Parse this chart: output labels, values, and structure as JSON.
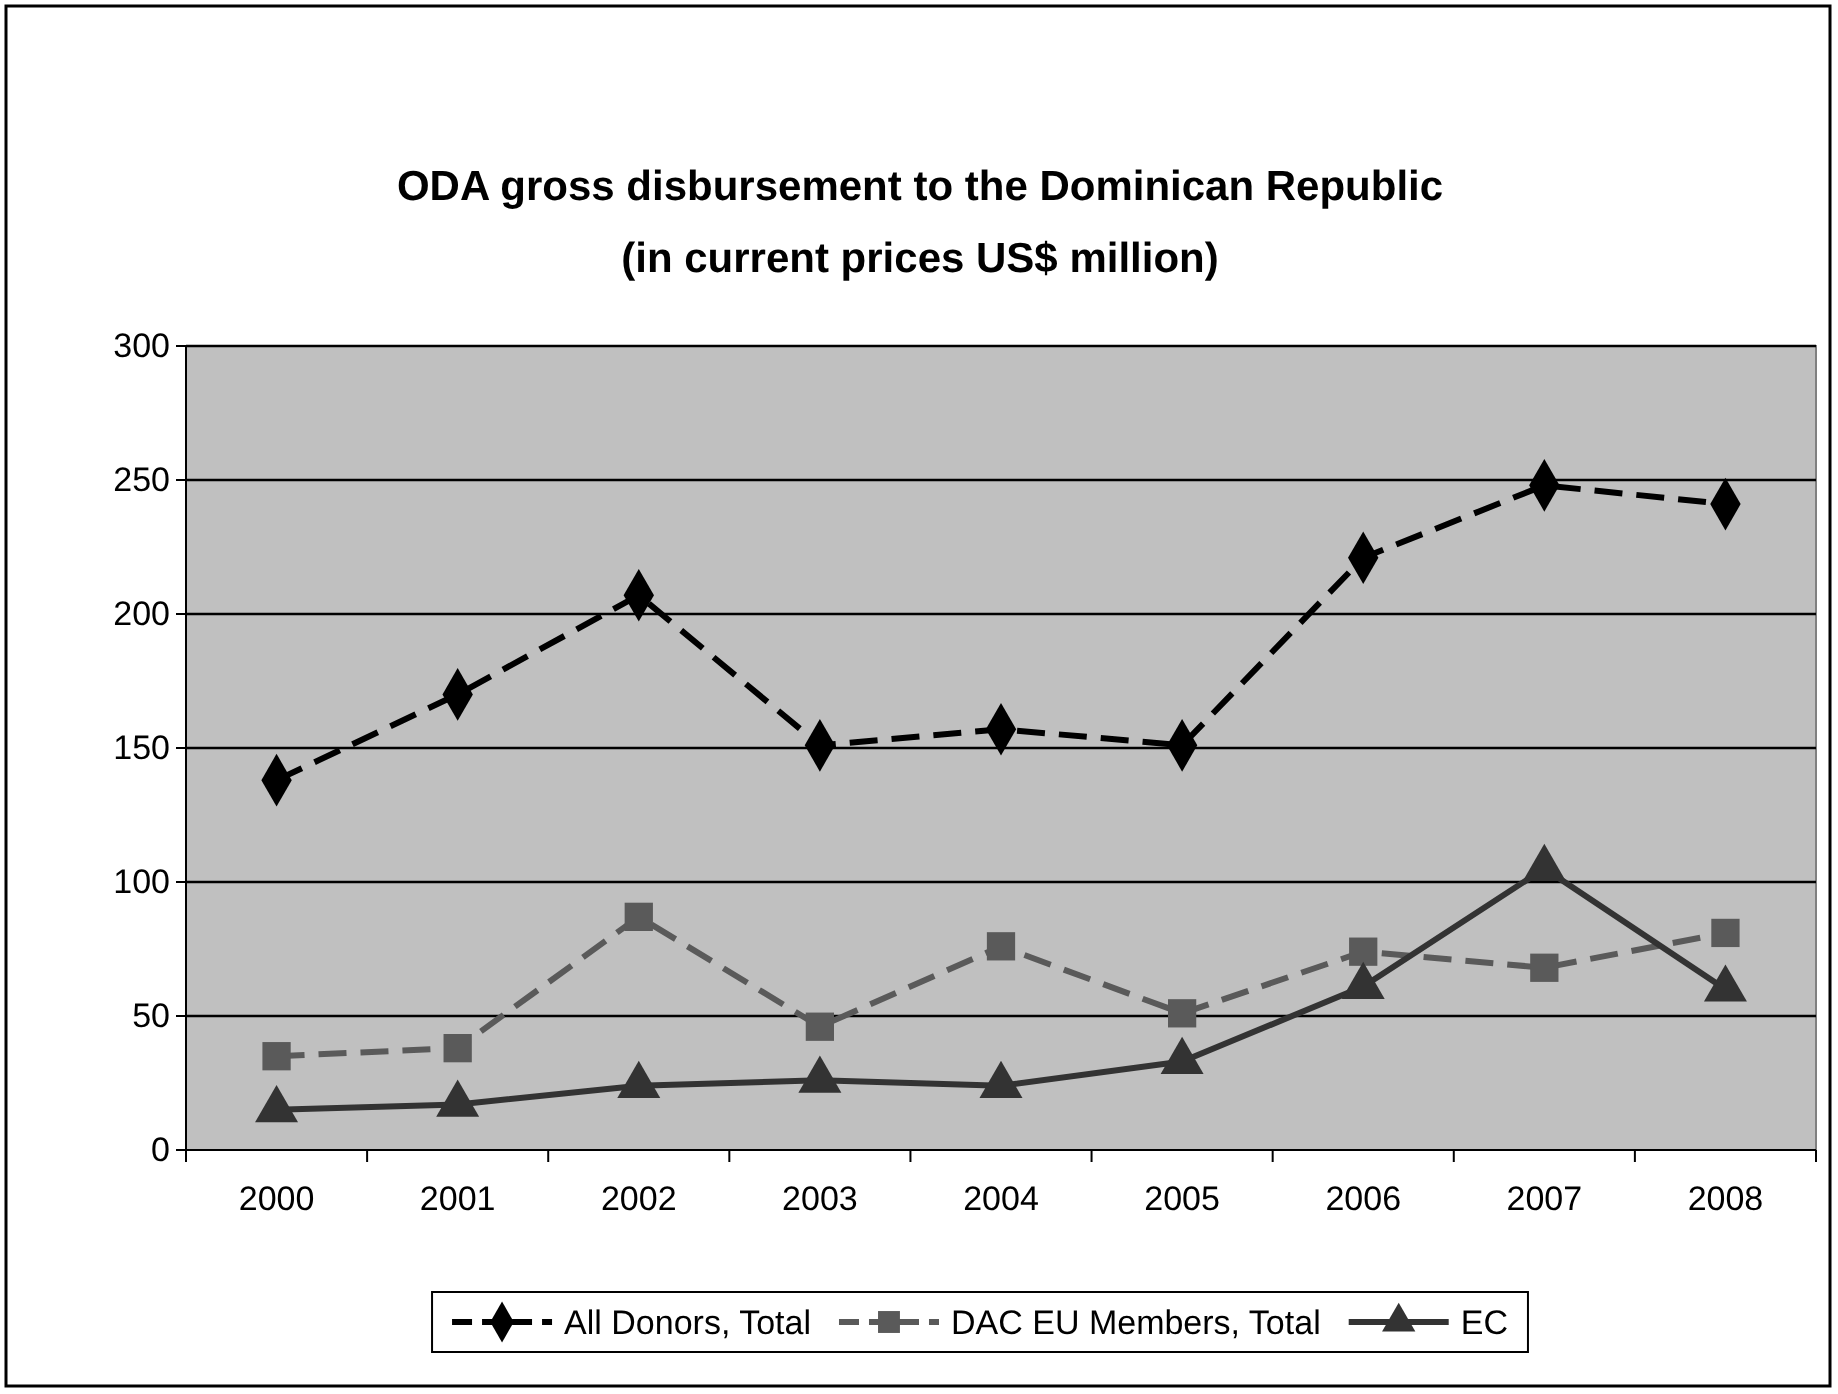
{
  "chart_data": {
    "type": "line",
    "title": "ODA gross disbursement to the Dominican Republic\n(in current prices US$ million)",
    "categories": [
      "2000",
      "2001",
      "2002",
      "2003",
      "2004",
      "2005",
      "2006",
      "2007",
      "2008"
    ],
    "series": [
      {
        "name": "All Donors, Total",
        "color": "#000000",
        "marker": "diamond",
        "line_style": "dashed",
        "values": [
          138,
          170,
          207,
          151,
          157,
          151,
          221,
          248,
          241
        ]
      },
      {
        "name": "DAC EU Members, Total",
        "color": "#5a5a5a",
        "marker": "square",
        "line_style": "dashed",
        "values": [
          35,
          38,
          87,
          46,
          76,
          51,
          74,
          68,
          81
        ]
      },
      {
        "name": "EC",
        "color": "#333333",
        "marker": "triangle",
        "line_style": "solid",
        "values": [
          15,
          17,
          24,
          26,
          24,
          33,
          61,
          105,
          60
        ]
      }
    ],
    "ylim": [
      0,
      300
    ],
    "yticks": [
      0,
      50,
      100,
      150,
      200,
      250,
      300
    ],
    "grid": "y",
    "legend": "bottom"
  }
}
